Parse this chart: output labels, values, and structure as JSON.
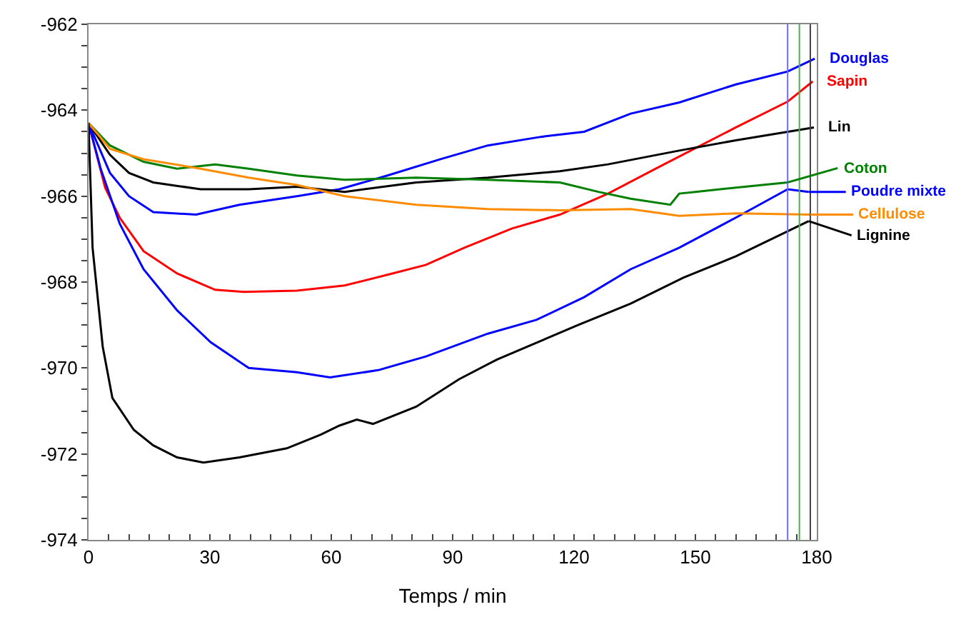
{
  "chart_data": {
    "type": "line",
    "xlabel": "Temps / min",
    "xlim": [
      0,
      180
    ],
    "xticks": [
      0,
      {
        "value": 5,
        "label": null
      },
      {
        "value": 10,
        "label": null
      },
      {
        "value": 15,
        "label": null
      },
      {
        "value": 20,
        "label": null
      },
      {
        "value": 25,
        "label": null
      },
      30,
      {
        "value": 35,
        "label": null
      },
      {
        "value": 40,
        "label": null
      },
      {
        "value": 45,
        "label": null
      },
      {
        "value": 50,
        "label": null
      },
      {
        "value": 55,
        "label": null
      },
      60,
      {
        "value": 65,
        "label": null
      },
      {
        "value": 70,
        "label": null
      },
      {
        "value": 75,
        "label": null
      },
      {
        "value": 80,
        "label": null
      },
      {
        "value": 85,
        "label": null
      },
      90,
      {
        "value": 95,
        "label": null
      },
      {
        "value": 100,
        "label": null
      },
      {
        "value": 105,
        "label": null
      },
      {
        "value": 110,
        "label": null
      },
      {
        "value": 115,
        "label": null
      },
      120,
      {
        "value": 125,
        "label": null
      },
      {
        "value": 130,
        "label": null
      },
      {
        "value": 135,
        "label": null
      },
      {
        "value": 140,
        "label": null
      },
      {
        "value": 145,
        "label": null
      },
      150,
      {
        "value": 155,
        "label": null
      },
      {
        "value": 160,
        "label": null
      },
      {
        "value": 165,
        "label": null
      },
      {
        "value": 170,
        "label": null
      },
      {
        "value": 175,
        "label": null
      },
      180
    ],
    "ylim": [
      -974,
      -962
    ],
    "yticks": [
      -974,
      {
        "value": -973.5,
        "label": null
      },
      {
        "value": -973,
        "label": null
      },
      {
        "value": -972.5,
        "label": null
      },
      -972,
      {
        "value": -971.5,
        "label": null
      },
      {
        "value": -971,
        "label": null
      },
      {
        "value": -970.5,
        "label": null
      },
      -970,
      {
        "value": -969.5,
        "label": null
      },
      {
        "value": -969,
        "label": null
      },
      {
        "value": -968.5,
        "label": null
      },
      -968,
      {
        "value": -967.5,
        "label": null
      },
      {
        "value": -967,
        "label": null
      },
      {
        "value": -966.5,
        "label": null
      },
      -966,
      {
        "value": -965.5,
        "label": null
      },
      {
        "value": -965,
        "label": null
      },
      {
        "value": -964.5,
        "label": null
      },
      -964,
      {
        "value": -963.5,
        "label": null
      },
      {
        "value": -963,
        "label": null
      },
      {
        "value": -962.5,
        "label": null
      },
      -962
    ],
    "legend": "right",
    "marker": "none",
    "line_style": "solid",
    "ref_lines": [
      {
        "axis": "x",
        "value": 172.8,
        "color": "#6a6aff"
      },
      {
        "axis": "x",
        "value": 175.7,
        "color": "#4caf50"
      },
      {
        "axis": "x",
        "value": 178.4,
        "color": "#404040"
      }
    ],
    "series": [
      {
        "name": "Douglas",
        "color": "#0000ff",
        "x": [
          0,
          5.3,
          10,
          16,
          26.6,
          37.3,
          51.5,
          62,
          73.9,
          87,
          98.7,
          111.8,
          122.5,
          134,
          146,
          160,
          172.8,
          179.5
        ],
        "values": [
          -964.3,
          -965.46,
          -966.0,
          -966.37,
          -966.43,
          -966.2,
          -966.0,
          -965.84,
          -965.52,
          -965.14,
          -964.82,
          -964.62,
          -964.5,
          -964.08,
          -963.82,
          -963.4,
          -963.1,
          -962.8
        ]
      },
      {
        "name": "Sapin",
        "color": "#ff0000",
        "x": [
          0,
          4.1,
          7.7,
          13.6,
          21.9,
          31.3,
          38.4,
          51.5,
          63.3,
          75.1,
          83.4,
          92.9,
          104.7,
          116.5,
          128.4,
          140.2,
          160,
          172.8,
          179
        ],
        "values": [
          -964.3,
          -965.8,
          -966.5,
          -967.28,
          -967.8,
          -968.18,
          -968.23,
          -968.2,
          -968.08,
          -967.8,
          -967.6,
          -967.2,
          -966.75,
          -966.43,
          -965.94,
          -965.36,
          -964.4,
          -963.8,
          -963.33
        ]
      },
      {
        "name": "Lin",
        "color": "#000000",
        "x": [
          0,
          5.3,
          10,
          16,
          27.7,
          39.6,
          51.5,
          63.3,
          81,
          98.7,
          116.5,
          128.4,
          146,
          160,
          179.3
        ],
        "values": [
          -964.3,
          -965.04,
          -965.46,
          -965.68,
          -965.84,
          -965.84,
          -965.78,
          -965.9,
          -965.68,
          -965.57,
          -965.42,
          -965.26,
          -964.94,
          -964.7,
          -964.4
        ]
      },
      {
        "name": "Coton",
        "color": "#008000",
        "x": [
          0,
          5.3,
          13.6,
          21.9,
          31.3,
          39.6,
          51.5,
          63.3,
          81,
          98.7,
          116.5,
          126,
          134,
          143.8,
          146,
          150,
          160,
          172.8
        ],
        "values": [
          -964.3,
          -964.82,
          -965.2,
          -965.36,
          -965.26,
          -965.36,
          -965.52,
          -965.62,
          -965.57,
          -965.62,
          -965.68,
          -965.9,
          -966.06,
          -966.2,
          -965.94,
          -965.9,
          -965.8,
          -965.68
        ]
      },
      {
        "name": "Poudre mixte",
        "color": "#0000ff",
        "x": [
          0,
          3,
          7.7,
          13.6,
          21.9,
          30.2,
          39.6,
          51.5,
          59.7,
          71.6,
          83.4,
          98.7,
          110.7,
          122.5,
          134,
          146,
          160,
          172.8,
          178
        ],
        "values": [
          -964.3,
          -965.36,
          -966.64,
          -967.7,
          -968.66,
          -969.4,
          -970.0,
          -970.1,
          -970.22,
          -970.05,
          -969.73,
          -969.2,
          -968.88,
          -968.35,
          -967.7,
          -967.2,
          -966.5,
          -965.84,
          -965.9
        ]
      },
      {
        "name": "Cellulose",
        "color": "#ff8c00",
        "x": [
          0,
          5.3,
          13.6,
          27.7,
          39.6,
          51.5,
          63.3,
          81,
          98.7,
          116.5,
          134,
          146,
          160,
          178.4
        ],
        "values": [
          -964.3,
          -964.9,
          -965.14,
          -965.36,
          -965.57,
          -965.74,
          -966.0,
          -966.2,
          -966.3,
          -966.33,
          -966.3,
          -966.46,
          -966.4,
          -966.43
        ]
      },
      {
        "name": "Lignine",
        "color": "#000000",
        "x": [
          0,
          1,
          3.5,
          5.9,
          11.2,
          16,
          21.9,
          28.4,
          37.3,
          49,
          57.4,
          62,
          66.3,
          70.3,
          81,
          91.6,
          101,
          121,
          134,
          147,
          160,
          178
        ],
        "values": [
          -964.3,
          -967.2,
          -969.5,
          -970.7,
          -971.44,
          -971.8,
          -972.08,
          -972.2,
          -972.08,
          -971.87,
          -971.55,
          -971.34,
          -971.2,
          -971.3,
          -970.9,
          -970.26,
          -969.8,
          -969.0,
          -968.5,
          -967.9,
          -967.4,
          -966.58
        ]
      }
    ]
  }
}
